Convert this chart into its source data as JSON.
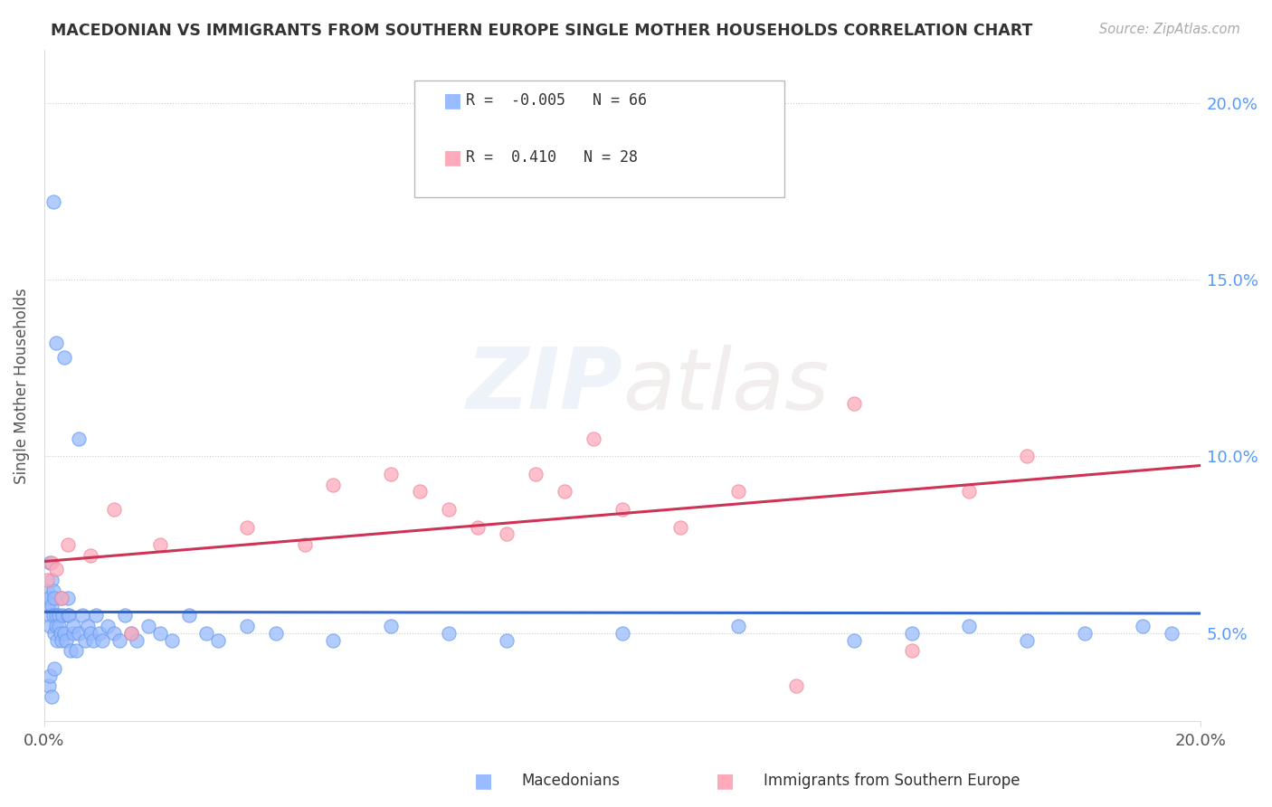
{
  "title": "MACEDONIAN VS IMMIGRANTS FROM SOUTHERN EUROPE SINGLE MOTHER HOUSEHOLDS CORRELATION CHART",
  "source": "Source: ZipAtlas.com",
  "ylabel": "Single Mother Households",
  "macedonian_color": "#99bbff",
  "macedonian_edge_color": "#6699ee",
  "immigrant_color": "#ffaabb",
  "immigrant_edge_color": "#ee8899",
  "macedonian_line_color": "#3366cc",
  "immigrant_line_color": "#cc3355",
  "macedonian_R": -0.005,
  "macedonian_N": 66,
  "immigrant_R": 0.41,
  "immigrant_N": 28,
  "legend_label_1": "Macedonians",
  "legend_label_2": "Immigrants from Southern Europe",
  "watermark": "ZIPatlas",
  "background_color": "#ffffff",
  "xlim": [
    0.0,
    20.0
  ],
  "ylim": [
    2.5,
    21.5
  ],
  "ytick_vals": [
    5.0,
    10.0,
    15.0,
    20.0
  ],
  "ytick_labels": [
    "5.0%",
    "10.0%",
    "15.0%",
    "20.0%"
  ],
  "xtick_vals": [
    0.0,
    20.0
  ],
  "xtick_labels": [
    "0.0%",
    "20.0%"
  ],
  "mac_x": [
    0.05,
    0.07,
    0.08,
    0.09,
    0.1,
    0.1,
    0.12,
    0.13,
    0.15,
    0.15,
    0.17,
    0.18,
    0.2,
    0.2,
    0.22,
    0.25,
    0.25,
    0.28,
    0.3,
    0.3,
    0.32,
    0.35,
    0.38,
    0.4,
    0.4,
    0.42,
    0.45,
    0.5,
    0.5,
    0.55,
    0.6,
    0.65,
    0.7,
    0.75,
    0.8,
    0.85,
    0.9,
    0.95,
    1.0,
    1.1,
    1.2,
    1.3,
    1.4,
    1.5,
    1.6,
    1.8,
    2.0,
    2.2,
    2.5,
    2.8,
    3.0,
    3.5,
    4.0,
    5.0,
    6.0,
    7.0,
    8.0,
    10.0,
    12.0,
    14.0,
    15.0,
    16.0,
    17.0,
    18.0,
    19.0,
    19.5
  ],
  "mac_y": [
    6.2,
    5.8,
    6.0,
    5.5,
    5.2,
    7.0,
    6.5,
    5.8,
    6.2,
    5.5,
    5.0,
    6.0,
    5.5,
    5.2,
    4.8,
    5.5,
    5.2,
    5.0,
    4.8,
    6.0,
    5.5,
    5.0,
    4.8,
    5.5,
    6.0,
    5.5,
    4.5,
    5.0,
    5.2,
    4.5,
    5.0,
    5.5,
    4.8,
    5.2,
    5.0,
    4.8,
    5.5,
    5.0,
    4.8,
    5.2,
    5.0,
    4.8,
    5.5,
    5.0,
    4.8,
    5.2,
    5.0,
    4.8,
    5.5,
    5.0,
    4.8,
    5.2,
    5.0,
    4.8,
    5.2,
    5.0,
    4.8,
    5.0,
    5.2,
    4.8,
    5.0,
    5.2,
    4.8,
    5.0,
    5.2,
    5.0
  ],
  "mac_outliers_x": [
    0.15,
    0.2,
    0.35,
    0.6,
    0.08,
    0.1,
    0.12,
    0.18
  ],
  "mac_outliers_y": [
    17.2,
    13.2,
    12.8,
    10.5,
    3.5,
    3.8,
    3.2,
    4.0
  ],
  "imm_x": [
    0.05,
    0.12,
    0.2,
    0.4,
    0.8,
    1.2,
    2.0,
    3.5,
    5.0,
    6.0,
    6.5,
    7.0,
    7.5,
    8.0,
    8.5,
    9.0,
    9.5,
    10.0,
    11.0,
    12.0,
    13.0,
    14.0,
    15.0,
    16.0,
    17.0,
    0.3,
    1.5,
    4.5
  ],
  "imm_y": [
    6.5,
    7.0,
    6.8,
    7.5,
    7.2,
    8.5,
    7.5,
    8.0,
    9.2,
    9.5,
    9.0,
    8.5,
    8.0,
    7.8,
    9.5,
    9.0,
    10.5,
    8.5,
    8.0,
    9.0,
    3.5,
    11.5,
    4.5,
    9.0,
    10.0,
    6.0,
    5.0,
    7.5
  ]
}
